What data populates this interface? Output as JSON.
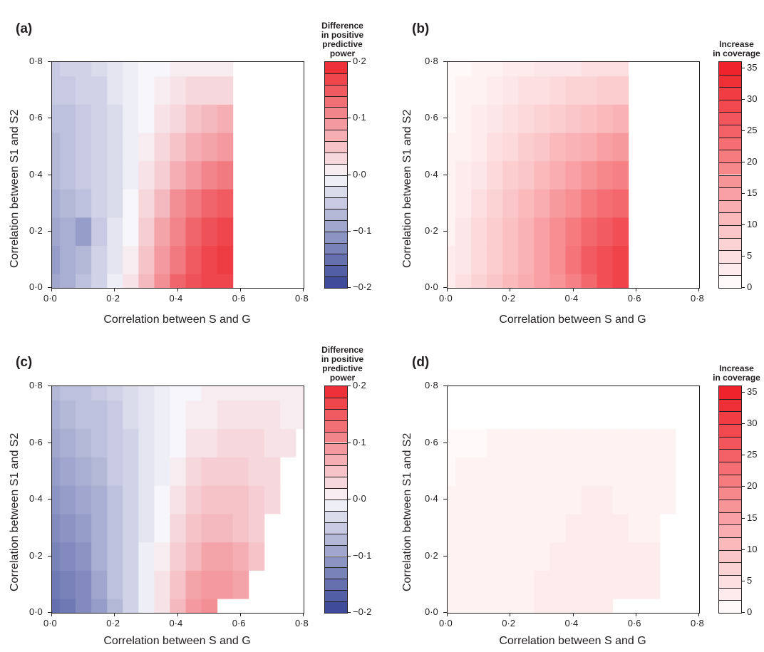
{
  "panels": [
    {
      "id": "a",
      "letter": "(a)",
      "xlabel": "Correlation between S and G",
      "ylabel": "Correlation between S1 and S2",
      "xticks": [
        "0·0",
        "0·2",
        "0·4",
        "0·6",
        "0·8"
      ],
      "yticks": [
        "0·0",
        "0·2",
        "0·4",
        "0·6",
        "0·8"
      ],
      "colorbar": {
        "title": [
          "Difference",
          "in positive",
          "predictive",
          "power"
        ],
        "ticks": [
          "0·2",
          "0·1",
          "0·0",
          "−0·1",
          "−0·2"
        ],
        "range": [
          -0.2,
          0.2
        ],
        "scheme": "diverging"
      }
    },
    {
      "id": "b",
      "letter": "(b)",
      "xlabel": "Correlation between S and G",
      "ylabel": "Correlation between S1 and S2",
      "xticks": [
        "0·0",
        "0·2",
        "0·4",
        "0·6",
        "0·8"
      ],
      "yticks": [
        "0·0",
        "0·2",
        "0·4",
        "0·6",
        "0·8"
      ],
      "colorbar": {
        "title": [
          "Increase",
          "in coverage"
        ],
        "ticks": [
          "35",
          "30",
          "25",
          "20",
          "15",
          "10",
          "5",
          "0"
        ],
        "range": [
          0,
          36
        ],
        "scheme": "sequential"
      }
    },
    {
      "id": "c",
      "letter": "(c)",
      "xlabel": "Correlation between S and G",
      "ylabel": "Correlation between S1 and S2",
      "xticks": [
        "0·0",
        "0·2",
        "0·4",
        "0·6",
        "0·8"
      ],
      "yticks": [
        "0·0",
        "0·2",
        "0·4",
        "0·6",
        "0·8"
      ],
      "colorbar": {
        "title": [
          "Difference",
          "in positive",
          "predictive",
          "power"
        ],
        "ticks": [
          "0·2",
          "0·1",
          "0·0",
          "−0·1",
          "−0·2"
        ],
        "range": [
          -0.2,
          0.2
        ],
        "scheme": "diverging"
      }
    },
    {
      "id": "d",
      "letter": "(d)",
      "xlabel": "Correlation between S and G",
      "ylabel": "Correlation between S1 and S2",
      "xticks": [
        "0·0",
        "0·2",
        "0·4",
        "0·6",
        "0·8"
      ],
      "yticks": [
        "0·0",
        "0·2",
        "0·4",
        "0·6",
        "0·8"
      ],
      "colorbar": {
        "title": [
          "Increase",
          "in coverage"
        ],
        "ticks": [
          "35",
          "30",
          "25",
          "20",
          "15",
          "10",
          "5",
          "0"
        ],
        "range": [
          0,
          36
        ],
        "scheme": "sequential"
      }
    }
  ],
  "colors": {
    "diverging_low": "#2b3990",
    "diverging_mid": "#f7f7fb",
    "diverging_high": "#ed1c24",
    "sequential_low": "#ffffff",
    "sequential_high": "#ed1c24"
  },
  "chart_data": [
    {
      "type": "heatmap",
      "panel": "a",
      "xlabel": "Correlation between S and G",
      "ylabel": "Correlation between S1 and S2",
      "xlim": [
        0,
        0.8
      ],
      "ylim": [
        0,
        0.8
      ],
      "colorbar_label": "Difference in positive predictive power",
      "value_range": [
        -0.2,
        0.2
      ],
      "x": [
        0.0,
        0.05,
        0.1,
        0.15,
        0.2,
        0.25,
        0.3,
        0.35,
        0.4,
        0.45,
        0.5,
        0.55
      ],
      "y": [
        0.0,
        0.1,
        0.2,
        0.3,
        0.4,
        0.5,
        0.6,
        0.7,
        0.8
      ],
      "z": [
        [
          -0.09,
          -0.08,
          -0.06,
          -0.04,
          -0.01,
          0.02,
          0.06,
          0.1,
          0.14,
          0.16,
          0.17,
          0.17
        ],
        [
          -0.1,
          -0.08,
          -0.07,
          -0.04,
          -0.02,
          0.01,
          0.05,
          0.09,
          0.12,
          0.15,
          0.17,
          0.18
        ],
        [
          -0.09,
          -0.08,
          -0.1,
          -0.05,
          -0.02,
          0.0,
          0.04,
          0.08,
          0.11,
          0.14,
          0.16,
          0.17
        ],
        [
          -0.08,
          -0.07,
          -0.06,
          -0.04,
          -0.03,
          0.0,
          0.03,
          0.06,
          0.1,
          0.12,
          0.14,
          0.15
        ],
        [
          -0.07,
          -0.06,
          -0.05,
          -0.04,
          -0.03,
          -0.01,
          0.02,
          0.04,
          0.07,
          0.09,
          0.11,
          0.12
        ],
        [
          -0.07,
          -0.06,
          -0.05,
          -0.04,
          -0.03,
          -0.01,
          0.01,
          0.03,
          0.05,
          0.07,
          0.08,
          0.09
        ],
        [
          -0.06,
          -0.06,
          -0.05,
          -0.04,
          -0.03,
          -0.01,
          0.0,
          0.02,
          0.03,
          0.05,
          0.06,
          0.07
        ],
        [
          -0.05,
          -0.05,
          -0.04,
          -0.04,
          -0.02,
          -0.01,
          0.0,
          0.01,
          0.02,
          0.03,
          0.03,
          0.03
        ],
        [
          -0.05,
          -0.04,
          -0.04,
          -0.03,
          -0.02,
          -0.01,
          0.0,
          0.0,
          0.01,
          0.01,
          0.01,
          0.01
        ]
      ]
    },
    {
      "type": "heatmap",
      "panel": "b",
      "xlabel": "Correlation between S and G",
      "ylabel": "Correlation between S1 and S2",
      "xlim": [
        0,
        0.8
      ],
      "ylim": [
        0,
        0.8
      ],
      "colorbar_label": "Increase in coverage",
      "value_range": [
        0,
        36
      ],
      "x": [
        0.0,
        0.05,
        0.1,
        0.15,
        0.2,
        0.25,
        0.3,
        0.35,
        0.4,
        0.45,
        0.5,
        0.55
      ],
      "y": [
        0.0,
        0.1,
        0.2,
        0.3,
        0.4,
        0.5,
        0.6,
        0.7,
        0.8
      ],
      "z": [
        [
          3,
          5,
          7,
          9,
          11,
          13,
          15,
          17,
          20,
          24,
          28,
          30
        ],
        [
          3,
          4,
          6,
          8,
          10,
          12,
          15,
          18,
          22,
          26,
          28,
          30
        ],
        [
          2,
          4,
          6,
          8,
          10,
          12,
          15,
          18,
          21,
          24,
          26,
          28
        ],
        [
          2,
          3,
          5,
          7,
          9,
          11,
          13,
          16,
          18,
          21,
          23,
          24
        ],
        [
          2,
          3,
          4,
          6,
          8,
          9,
          11,
          13,
          15,
          17,
          19,
          20
        ],
        [
          2,
          2,
          3,
          5,
          6,
          8,
          9,
          11,
          12,
          13,
          15,
          16
        ],
        [
          1,
          2,
          3,
          4,
          5,
          6,
          7,
          8,
          9,
          10,
          11,
          12
        ],
        [
          1,
          2,
          2,
          3,
          4,
          5,
          5,
          6,
          7,
          7,
          8,
          8
        ],
        [
          1,
          1,
          2,
          2,
          3,
          3,
          4,
          4,
          4,
          5,
          5,
          5
        ]
      ]
    },
    {
      "type": "heatmap",
      "panel": "c",
      "xlabel": "Correlation between S and G",
      "ylabel": "Correlation between S1 and S2",
      "xlim": [
        0,
        0.8
      ],
      "ylim": [
        0,
        0.8
      ],
      "colorbar_label": "Difference in positive predictive power",
      "value_range": [
        -0.2,
        0.2
      ],
      "x": [
        0.0,
        0.05,
        0.1,
        0.15,
        0.2,
        0.25,
        0.3,
        0.35,
        0.4,
        0.45,
        0.5,
        0.55,
        0.6,
        0.65,
        0.7,
        0.75,
        0.8
      ],
      "y": [
        0.0,
        0.1,
        0.2,
        0.3,
        0.4,
        0.5,
        0.6,
        0.7,
        0.8
      ],
      "z": [
        [
          -0.15,
          -0.14,
          -0.12,
          -0.1,
          -0.07,
          -0.04,
          -0.01,
          0.02,
          0.06,
          0.09,
          0.1,
          null,
          null,
          null,
          null,
          null,
          null
        ],
        [
          -0.14,
          -0.13,
          -0.12,
          -0.09,
          -0.06,
          -0.04,
          -0.01,
          0.02,
          0.05,
          0.08,
          0.09,
          0.09,
          0.08,
          null,
          null,
          null,
          null
        ],
        [
          -0.13,
          -0.12,
          -0.11,
          -0.08,
          -0.06,
          -0.04,
          -0.01,
          0.01,
          0.04,
          0.06,
          0.08,
          0.08,
          0.07,
          0.05,
          null,
          null,
          null
        ],
        [
          -0.12,
          -0.11,
          -0.1,
          -0.08,
          -0.06,
          -0.04,
          -0.02,
          0.0,
          0.03,
          0.05,
          0.06,
          0.06,
          0.05,
          0.04,
          null,
          null,
          null
        ],
        [
          -0.11,
          -0.1,
          -0.09,
          -0.08,
          -0.06,
          -0.04,
          -0.02,
          0.0,
          0.02,
          0.04,
          0.05,
          0.05,
          0.05,
          0.04,
          0.03,
          null,
          null
        ],
        [
          -0.1,
          -0.09,
          -0.08,
          -0.07,
          -0.05,
          -0.04,
          -0.02,
          -0.01,
          0.01,
          0.03,
          0.04,
          0.04,
          0.04,
          0.03,
          0.03,
          null,
          null
        ],
        [
          -0.09,
          -0.08,
          -0.07,
          -0.06,
          -0.05,
          -0.04,
          -0.02,
          -0.01,
          0.0,
          0.02,
          0.02,
          0.03,
          0.03,
          0.03,
          0.02,
          0.02,
          null
        ],
        [
          -0.08,
          -0.07,
          -0.06,
          -0.06,
          -0.05,
          -0.03,
          -0.02,
          -0.01,
          0.0,
          0.01,
          0.01,
          0.02,
          0.02,
          0.02,
          0.02,
          0.01,
          0.01
        ],
        [
          -0.07,
          -0.06,
          -0.06,
          -0.05,
          -0.04,
          -0.03,
          -0.02,
          -0.01,
          0.0,
          0.0,
          0.01,
          0.01,
          0.01,
          0.01,
          0.01,
          0.01,
          0.01
        ]
      ]
    },
    {
      "type": "heatmap",
      "panel": "d",
      "xlabel": "Correlation between S and G",
      "ylabel": "Correlation between S1 and S2",
      "xlim": [
        0,
        0.8
      ],
      "ylim": [
        0,
        0.8
      ],
      "colorbar_label": "Increase in coverage",
      "value_range": [
        0,
        36
      ],
      "x": [
        0.0,
        0.05,
        0.1,
        0.15,
        0.2,
        0.25,
        0.3,
        0.35,
        0.4,
        0.45,
        0.5,
        0.55,
        0.6,
        0.65,
        0.7,
        0.75,
        0.8
      ],
      "y": [
        0.0,
        0.1,
        0.2,
        0.3,
        0.4,
        0.5,
        0.6,
        0.7,
        0.8
      ],
      "z": [
        [
          2,
          2,
          2,
          2,
          2,
          2,
          3,
          3,
          3,
          3,
          3,
          null,
          null,
          null,
          null,
          null,
          null
        ],
        [
          2,
          2,
          2,
          2,
          2,
          2,
          3,
          3,
          3,
          3,
          3,
          3,
          3,
          3,
          null,
          null,
          null
        ],
        [
          2,
          2,
          2,
          2,
          2,
          2,
          2,
          3,
          3,
          3,
          3,
          3,
          3,
          3,
          null,
          null,
          null
        ],
        [
          2,
          2,
          2,
          2,
          2,
          2,
          2,
          2,
          3,
          3,
          3,
          3,
          2,
          2,
          null,
          null,
          null
        ],
        [
          2,
          2,
          2,
          2,
          2,
          2,
          2,
          2,
          2,
          3,
          3,
          2,
          2,
          2,
          2,
          null,
          null
        ],
        [
          1,
          2,
          2,
          2,
          2,
          2,
          2,
          2,
          2,
          2,
          2,
          2,
          2,
          2,
          2,
          null,
          null
        ],
        [
          1,
          1,
          1,
          2,
          2,
          2,
          2,
          2,
          2,
          2,
          2,
          2,
          2,
          2,
          2,
          null,
          null
        ],
        [
          0,
          0,
          0,
          0,
          0,
          0,
          0,
          0,
          0,
          0,
          0,
          0,
          0,
          0,
          0,
          0,
          0
        ],
        [
          0,
          0,
          0,
          0,
          0,
          0,
          0,
          0,
          0,
          0,
          0,
          0,
          0,
          0,
          0,
          0,
          0
        ]
      ]
    }
  ]
}
